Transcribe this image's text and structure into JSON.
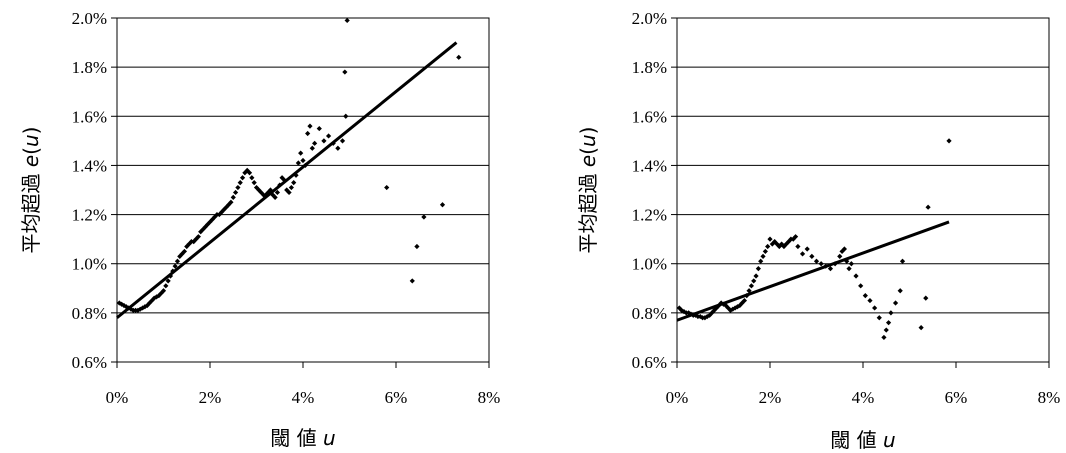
{
  "chart_data": [
    {
      "type": "scatter",
      "ylabel": {
        "text": "平均超過",
        "var": "e",
        "paren_open": "(",
        "paren_var": "u",
        "paren_close": ")"
      },
      "xlabel": {
        "text": "閾 値",
        "var": "u"
      },
      "xlim": [
        0,
        8
      ],
      "ylim": [
        0.6,
        2.0
      ],
      "x_ticks": [
        "0%",
        "2%",
        "4%",
        "6%",
        "8%"
      ],
      "y_ticks": [
        "0.6%",
        "0.8%",
        "1.0%",
        "1.2%",
        "1.4%",
        "1.6%",
        "1.8%",
        "2.0%"
      ],
      "grid": "horizontal",
      "points": [
        [
          0.05,
          0.84
        ],
        [
          0.1,
          0.835
        ],
        [
          0.15,
          0.83
        ],
        [
          0.2,
          0.825
        ],
        [
          0.25,
          0.82
        ],
        [
          0.3,
          0.815
        ],
        [
          0.35,
          0.81
        ],
        [
          0.4,
          0.81
        ],
        [
          0.45,
          0.81
        ],
        [
          0.5,
          0.815
        ],
        [
          0.55,
          0.82
        ],
        [
          0.6,
          0.825
        ],
        [
          0.65,
          0.83
        ],
        [
          0.7,
          0.84
        ],
        [
          0.75,
          0.85
        ],
        [
          0.8,
          0.86
        ],
        [
          0.85,
          0.865
        ],
        [
          0.9,
          0.87
        ],
        [
          0.95,
          0.88
        ],
        [
          1.0,
          0.89
        ],
        [
          1.05,
          0.91
        ],
        [
          1.1,
          0.93
        ],
        [
          1.15,
          0.95
        ],
        [
          1.2,
          0.97
        ],
        [
          1.25,
          0.99
        ],
        [
          1.3,
          1.01
        ],
        [
          1.35,
          1.03
        ],
        [
          1.4,
          1.04
        ],
        [
          1.45,
          1.05
        ],
        [
          1.5,
          1.07
        ],
        [
          1.55,
          1.08
        ],
        [
          1.6,
          1.09
        ],
        [
          1.65,
          1.09
        ],
        [
          1.7,
          1.1
        ],
        [
          1.75,
          1.11
        ],
        [
          1.8,
          1.13
        ],
        [
          1.85,
          1.14
        ],
        [
          1.9,
          1.15
        ],
        [
          1.95,
          1.16
        ],
        [
          2.0,
          1.17
        ],
        [
          2.05,
          1.18
        ],
        [
          2.1,
          1.19
        ],
        [
          2.15,
          1.2
        ],
        [
          2.2,
          1.2
        ],
        [
          2.25,
          1.21
        ],
        [
          2.3,
          1.22
        ],
        [
          2.35,
          1.23
        ],
        [
          2.4,
          1.24
        ],
        [
          2.45,
          1.25
        ],
        [
          2.5,
          1.27
        ],
        [
          2.55,
          1.29
        ],
        [
          2.6,
          1.31
        ],
        [
          2.65,
          1.33
        ],
        [
          2.7,
          1.35
        ],
        [
          2.75,
          1.37
        ],
        [
          2.8,
          1.38
        ],
        [
          2.85,
          1.37
        ],
        [
          2.9,
          1.35
        ],
        [
          2.95,
          1.33
        ],
        [
          3.0,
          1.31
        ],
        [
          3.05,
          1.3
        ],
        [
          3.1,
          1.29
        ],
        [
          3.15,
          1.28
        ],
        [
          3.2,
          1.28
        ],
        [
          3.25,
          1.29
        ],
        [
          3.3,
          1.3
        ],
        [
          3.35,
          1.28
        ],
        [
          3.4,
          1.27
        ],
        [
          3.45,
          1.29
        ],
        [
          3.5,
          1.32
        ],
        [
          3.55,
          1.35
        ],
        [
          3.6,
          1.34
        ],
        [
          3.65,
          1.3
        ],
        [
          3.7,
          1.29
        ],
        [
          3.75,
          1.31
        ],
        [
          3.8,
          1.33
        ],
        [
          3.85,
          1.36
        ],
        [
          3.9,
          1.41
        ],
        [
          3.95,
          1.45
        ],
        [
          4.0,
          1.42
        ],
        [
          4.05,
          1.4
        ],
        [
          4.1,
          1.53
        ],
        [
          4.15,
          1.56
        ],
        [
          4.2,
          1.47
        ],
        [
          4.25,
          1.49
        ],
        [
          4.35,
          1.55
        ],
        [
          4.45,
          1.5
        ],
        [
          4.55,
          1.52
        ],
        [
          4.65,
          1.49
        ],
        [
          4.75,
          1.47
        ],
        [
          4.85,
          1.5
        ],
        [
          4.9,
          1.78
        ],
        [
          4.92,
          1.6
        ],
        [
          4.95,
          1.99
        ],
        [
          5.8,
          1.31
        ],
        [
          6.35,
          0.93
        ],
        [
          6.45,
          1.07
        ],
        [
          6.6,
          1.19
        ],
        [
          7.0,
          1.24
        ],
        [
          7.35,
          1.84
        ]
      ],
      "fit_line": {
        "x": [
          0,
          7.3
        ],
        "y": [
          0.78,
          1.9
        ]
      }
    },
    {
      "type": "scatter",
      "ylabel": {
        "text": "平均超過",
        "var": "e",
        "paren_open": "(",
        "paren_var": "u",
        "paren_close": ")"
      },
      "xlabel": {
        "text": "閾 値",
        "var": "u"
      },
      "xlim": [
        0,
        8
      ],
      "ylim": [
        0.6,
        2.0
      ],
      "x_ticks": [
        "0%",
        "2%",
        "4%",
        "6%",
        "8%"
      ],
      "y_ticks": [
        "0.6%",
        "0.8%",
        "1.0%",
        "1.2%",
        "1.4%",
        "1.6%",
        "1.8%",
        "2.0%"
      ],
      "grid": "horizontal",
      "points": [
        [
          0.05,
          0.82
        ],
        [
          0.1,
          0.81
        ],
        [
          0.15,
          0.805
        ],
        [
          0.2,
          0.8
        ],
        [
          0.25,
          0.8
        ],
        [
          0.3,
          0.795
        ],
        [
          0.35,
          0.79
        ],
        [
          0.4,
          0.79
        ],
        [
          0.45,
          0.785
        ],
        [
          0.5,
          0.785
        ],
        [
          0.55,
          0.78
        ],
        [
          0.6,
          0.78
        ],
        [
          0.65,
          0.785
        ],
        [
          0.7,
          0.79
        ],
        [
          0.75,
          0.8
        ],
        [
          0.8,
          0.81
        ],
        [
          0.85,
          0.82
        ],
        [
          0.9,
          0.83
        ],
        [
          0.95,
          0.84
        ],
        [
          1.0,
          0.835
        ],
        [
          1.05,
          0.83
        ],
        [
          1.1,
          0.82
        ],
        [
          1.15,
          0.81
        ],
        [
          1.2,
          0.815
        ],
        [
          1.25,
          0.82
        ],
        [
          1.3,
          0.825
        ],
        [
          1.35,
          0.83
        ],
        [
          1.4,
          0.84
        ],
        [
          1.45,
          0.85
        ],
        [
          1.5,
          0.87
        ],
        [
          1.55,
          0.89
        ],
        [
          1.6,
          0.91
        ],
        [
          1.65,
          0.93
        ],
        [
          1.7,
          0.95
        ],
        [
          1.75,
          0.98
        ],
        [
          1.8,
          1.01
        ],
        [
          1.85,
          1.03
        ],
        [
          1.9,
          1.05
        ],
        [
          1.95,
          1.07
        ],
        [
          2.0,
          1.1
        ],
        [
          2.05,
          1.08
        ],
        [
          2.1,
          1.09
        ],
        [
          2.15,
          1.08
        ],
        [
          2.2,
          1.07
        ],
        [
          2.25,
          1.08
        ],
        [
          2.3,
          1.07
        ],
        [
          2.35,
          1.08
        ],
        [
          2.4,
          1.09
        ],
        [
          2.45,
          1.1
        ],
        [
          2.5,
          1.1
        ],
        [
          2.55,
          1.11
        ],
        [
          2.6,
          1.07
        ],
        [
          2.7,
          1.04
        ],
        [
          2.8,
          1.06
        ],
        [
          2.9,
          1.03
        ],
        [
          3.0,
          1.01
        ],
        [
          3.1,
          1.0
        ],
        [
          3.2,
          0.99
        ],
        [
          3.3,
          0.98
        ],
        [
          3.4,
          1.0
        ],
        [
          3.5,
          1.03
        ],
        [
          3.55,
          1.05
        ],
        [
          3.6,
          1.06
        ],
        [
          3.65,
          1.01
        ],
        [
          3.7,
          0.98
        ],
        [
          3.75,
          1.0
        ],
        [
          3.85,
          0.95
        ],
        [
          3.95,
          0.91
        ],
        [
          4.05,
          0.87
        ],
        [
          4.15,
          0.85
        ],
        [
          4.25,
          0.82
        ],
        [
          4.35,
          0.78
        ],
        [
          4.45,
          0.7
        ],
        [
          4.5,
          0.73
        ],
        [
          4.55,
          0.76
        ],
        [
          4.6,
          0.8
        ],
        [
          4.7,
          0.84
        ],
        [
          4.8,
          0.89
        ],
        [
          4.85,
          1.01
        ],
        [
          5.25,
          0.74
        ],
        [
          5.35,
          0.86
        ],
        [
          5.4,
          1.23
        ],
        [
          5.85,
          1.5
        ]
      ],
      "fit_line": {
        "x": [
          0,
          5.85
        ],
        "y": [
          0.77,
          1.17
        ]
      }
    }
  ]
}
